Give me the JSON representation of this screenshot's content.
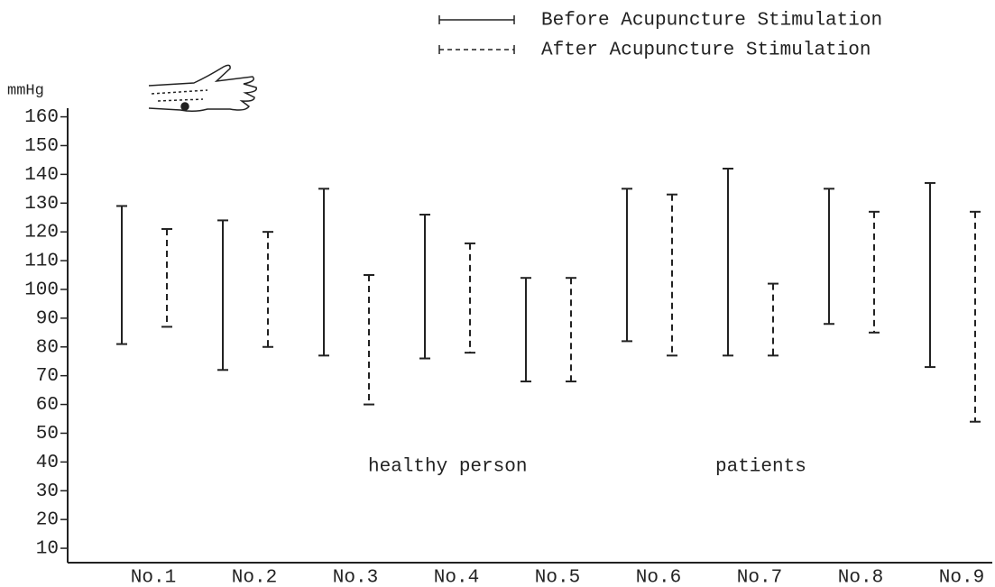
{
  "chart_data": {
    "type": "range",
    "y_label": "mmHg",
    "annotations": [
      "healthy person",
      "patients"
    ],
    "categories": [
      "No.1",
      "No.2",
      "No.3",
      "No.4",
      "No.5",
      "No.6",
      "No.7",
      "No.8",
      "No.9"
    ],
    "series": [
      {
        "name": "Before Acupuncture Stimulation",
        "color": "#222222",
        "line_style": "solid",
        "high": [
          129,
          124,
          135,
          126,
          104,
          135,
          142,
          135,
          137
        ],
        "low": [
          81,
          72,
          77,
          76,
          68,
          82,
          77,
          88,
          73
        ]
      },
      {
        "name": "After Acupuncture Stimulation",
        "color": "#222222",
        "line_style": "dashed",
        "high": [
          121,
          120,
          105,
          116,
          104,
          133,
          102,
          127,
          127
        ],
        "low": [
          87,
          80,
          60,
          78,
          68,
          77,
          77,
          85,
          54
        ]
      }
    ],
    "ylim": [
      5,
      163
    ],
    "yticks": [
      10,
      20,
      30,
      40,
      50,
      60,
      70,
      80,
      90,
      100,
      110,
      120,
      130,
      140,
      150,
      160
    ]
  }
}
